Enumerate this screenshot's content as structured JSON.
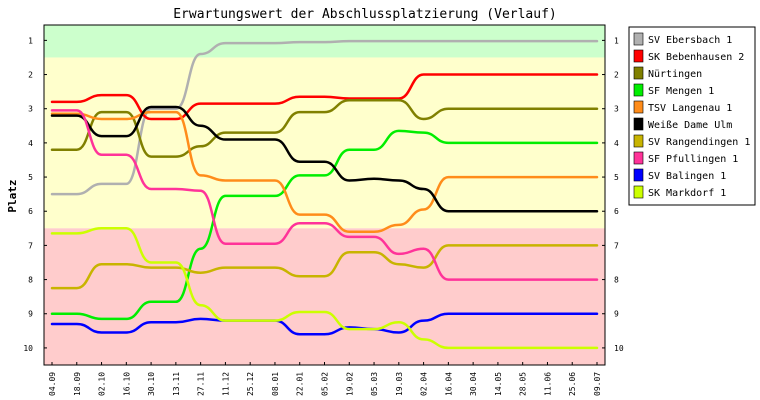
{
  "chart_data": {
    "type": "line",
    "title": "Erwartungswert der Abschlussplatzierung (Verlauf)",
    "xlabel": "",
    "ylabel": "Platz",
    "y_inverted": true,
    "ylim": [
      0.55,
      10.5
    ],
    "y_ticks": [
      1,
      2,
      3,
      4,
      5,
      6,
      7,
      8,
      9,
      10
    ],
    "grid": false,
    "legend_position": "right",
    "x": [
      "04.09",
      "18.09",
      "02.10",
      "16.10",
      "30.10",
      "13.11",
      "27.11",
      "11.12",
      "25.12",
      "08.01",
      "22.01",
      "05.02",
      "19.02",
      "05.03",
      "19.03",
      "02.04",
      "16.04",
      "30.04",
      "14.05",
      "28.05",
      "11.06",
      "25.06",
      "09.07"
    ],
    "bands": [
      {
        "from": 0.55,
        "to": 1.5,
        "color": "#ccffcc"
      },
      {
        "from": 1.5,
        "to": 6.5,
        "color": "#ffffcc"
      },
      {
        "from": 6.5,
        "to": 10.5,
        "color": "#ffcccc"
      }
    ],
    "series": [
      {
        "name": "SV Ebersbach 1",
        "color": "#b0b0b0",
        "values": [
          5.5,
          5.5,
          5.2,
          5.2,
          3.0,
          3.0,
          1.4,
          1.08,
          1.08,
          1.08,
          1.05,
          1.05,
          1.02,
          1.02,
          1.02,
          1.02,
          1.02,
          1.02,
          1.02,
          1.02,
          1.02,
          1.02,
          1.02
        ]
      },
      {
        "name": "SK Bebenhausen 2",
        "color": "#ff0000",
        "values": [
          2.8,
          2.8,
          2.6,
          2.6,
          3.3,
          3.3,
          2.85,
          2.85,
          2.85,
          2.85,
          2.65,
          2.65,
          2.7,
          2.7,
          2.7,
          2.0,
          2.0,
          2.0,
          2.0,
          2.0,
          2.0,
          2.0,
          2.0
        ]
      },
      {
        "name": "Nürtingen",
        "color": "#808000",
        "values": [
          4.2,
          4.2,
          3.1,
          3.1,
          4.4,
          4.4,
          4.1,
          3.7,
          3.7,
          3.7,
          3.1,
          3.1,
          2.75,
          2.75,
          2.75,
          3.3,
          3.0,
          3.0,
          3.0,
          3.0,
          3.0,
          3.0,
          3.0
        ]
      },
      {
        "name": "SF Mengen 1",
        "color": "#00ee00",
        "values": [
          9.0,
          9.0,
          9.15,
          9.15,
          8.65,
          8.65,
          7.1,
          5.55,
          5.55,
          5.55,
          4.95,
          4.95,
          4.2,
          4.2,
          3.65,
          3.7,
          4.0,
          4.0,
          4.0,
          4.0,
          4.0,
          4.0,
          4.0
        ]
      },
      {
        "name": "TSV Langenau 1",
        "color": "#ff8c1a",
        "values": [
          3.15,
          3.15,
          3.3,
          3.3,
          3.1,
          3.1,
          4.95,
          5.1,
          5.1,
          5.1,
          6.1,
          6.1,
          6.6,
          6.6,
          6.4,
          5.95,
          5.0,
          5.0,
          5.0,
          5.0,
          5.0,
          5.0,
          5.0
        ]
      },
      {
        "name": "Weiße Dame Ulm",
        "color": "#000000",
        "values": [
          3.2,
          3.2,
          3.8,
          3.8,
          2.95,
          2.95,
          3.5,
          3.9,
          3.9,
          3.9,
          4.55,
          4.55,
          5.1,
          5.05,
          5.1,
          5.35,
          6.0,
          6.0,
          6.0,
          6.0,
          6.0,
          6.0,
          6.0
        ]
      },
      {
        "name": "SV Rangendingen 1",
        "color": "#c8b400",
        "values": [
          8.25,
          8.25,
          7.55,
          7.55,
          7.65,
          7.65,
          7.8,
          7.65,
          7.65,
          7.65,
          7.9,
          7.9,
          7.2,
          7.2,
          7.55,
          7.65,
          7.0,
          7.0,
          7.0,
          7.0,
          7.0,
          7.0,
          7.0
        ]
      },
      {
        "name": "SF Pfullingen 1",
        "color": "#ff3399",
        "values": [
          3.05,
          3.05,
          4.35,
          4.35,
          5.35,
          5.35,
          5.4,
          6.95,
          6.95,
          6.95,
          6.35,
          6.35,
          6.75,
          6.75,
          7.25,
          7.1,
          8.0,
          8.0,
          8.0,
          8.0,
          8.0,
          8.0,
          8.0
        ]
      },
      {
        "name": "SV Balingen 1",
        "color": "#0000ff",
        "values": [
          9.3,
          9.3,
          9.55,
          9.55,
          9.25,
          9.25,
          9.15,
          9.2,
          9.2,
          9.2,
          9.6,
          9.6,
          9.4,
          9.45,
          9.55,
          9.2,
          9.0,
          9.0,
          9.0,
          9.0,
          9.0,
          9.0,
          9.0
        ]
      },
      {
        "name": "SK Markdorf 1",
        "color": "#ccff00",
        "values": [
          6.65,
          6.65,
          6.5,
          6.5,
          7.5,
          7.5,
          8.75,
          9.2,
          9.2,
          9.2,
          8.95,
          8.95,
          9.45,
          9.45,
          9.25,
          9.75,
          10.0,
          10.0,
          10.0,
          10.0,
          10.0,
          10.0,
          10.0
        ]
      }
    ]
  }
}
